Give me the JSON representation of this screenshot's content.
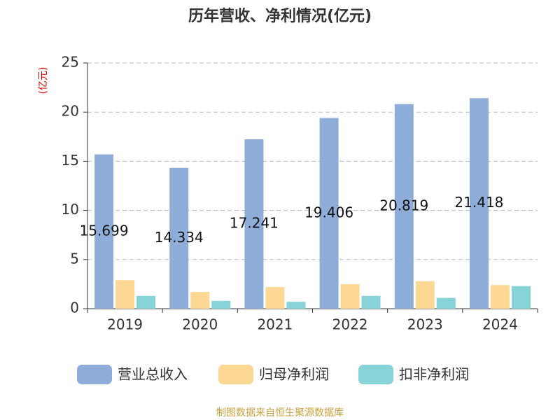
{
  "chart_data": {
    "type": "bar",
    "title": "历年营收、净利情况(亿元)",
    "y_label": "(亿元)",
    "categories": [
      "2019",
      "2020",
      "2021",
      "2022",
      "2023",
      "2024"
    ],
    "series": [
      {
        "name": "营业总收入",
        "color": "#8eadd9",
        "values": [
          15.699,
          14.334,
          17.241,
          19.406,
          20.819,
          21.418
        ],
        "show_labels": true
      },
      {
        "name": "归母净利润",
        "color": "#fdd794",
        "values": [
          2.9,
          1.7,
          2.2,
          2.5,
          2.8,
          2.4
        ]
      },
      {
        "name": "扣非净利润",
        "color": "#86d4d8",
        "values": [
          1.3,
          0.8,
          0.7,
          1.3,
          1.1,
          2.3
        ]
      }
    ],
    "ylim": [
      0,
      25
    ],
    "yticks": [
      0,
      5,
      10,
      15,
      20,
      25
    ],
    "grid": true,
    "source": "制图数据来自恒生聚源数据库"
  }
}
